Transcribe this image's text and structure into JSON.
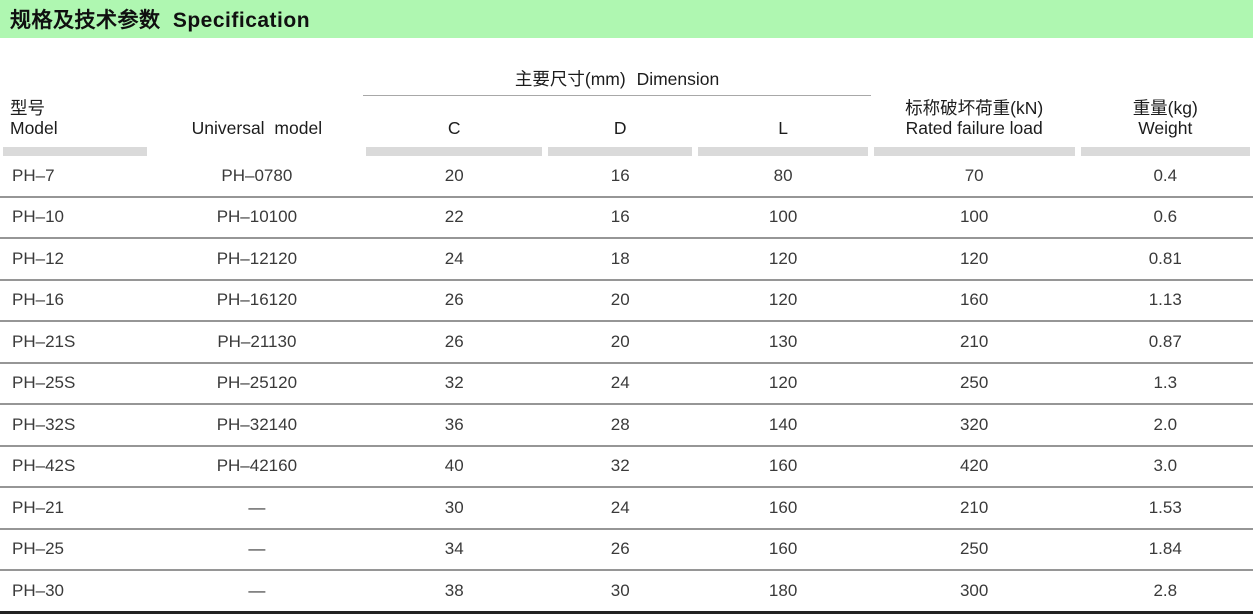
{
  "title": "规格及技术参数  Specification",
  "colors": {
    "title_bg": "#aff7b1",
    "bar_gray": "#dadada",
    "row_line": "#969696",
    "bottom_line": "#222222"
  },
  "table": {
    "headers": {
      "model_cn": "型号",
      "model_en": "Model",
      "universal": "Universal model",
      "dimension_cn": "主要尺寸(mm)",
      "dimension_en": "Dimension",
      "sub_c": "C",
      "sub_d": "D",
      "sub_l": "L",
      "rated_cn": "标称破坏荷重(kN)",
      "rated_en": "Rated failure load",
      "weight_cn": "重量(kg)",
      "weight_en": "Weight"
    },
    "rows": [
      {
        "model": "PH–7",
        "universal": "PH–0780",
        "c": "20",
        "d": "16",
        "l": "80",
        "rated": "70",
        "weight": "0.4"
      },
      {
        "model": "PH–10",
        "universal": "PH–10100",
        "c": "22",
        "d": "16",
        "l": "100",
        "rated": "100",
        "weight": "0.6"
      },
      {
        "model": "PH–12",
        "universal": "PH–12120",
        "c": "24",
        "d": "18",
        "l": "120",
        "rated": "120",
        "weight": "0.81"
      },
      {
        "model": "PH–16",
        "universal": "PH–16120",
        "c": "26",
        "d": "20",
        "l": "120",
        "rated": "160",
        "weight": "1.13"
      },
      {
        "model": "PH–21S",
        "universal": "PH–21130",
        "c": "26",
        "d": "20",
        "l": "130",
        "rated": "210",
        "weight": "0.87"
      },
      {
        "model": "PH–25S",
        "universal": "PH–25120",
        "c": "32",
        "d": "24",
        "l": "120",
        "rated": "250",
        "weight": "1.3"
      },
      {
        "model": "PH–32S",
        "universal": "PH–32140",
        "c": "36",
        "d": "28",
        "l": "140",
        "rated": "320",
        "weight": "2.0"
      },
      {
        "model": "PH–42S",
        "universal": "PH–42160",
        "c": "40",
        "d": "32",
        "l": "160",
        "rated": "420",
        "weight": "3.0"
      },
      {
        "model": "PH–21",
        "universal": "—",
        "c": "30",
        "d": "24",
        "l": "160",
        "rated": "210",
        "weight": "1.53"
      },
      {
        "model": "PH–25",
        "universal": "—",
        "c": "34",
        "d": "26",
        "l": "160",
        "rated": "250",
        "weight": "1.84"
      },
      {
        "model": "PH–30",
        "universal": "—",
        "c": "38",
        "d": "30",
        "l": "180",
        "rated": "300",
        "weight": "2.8"
      }
    ]
  }
}
